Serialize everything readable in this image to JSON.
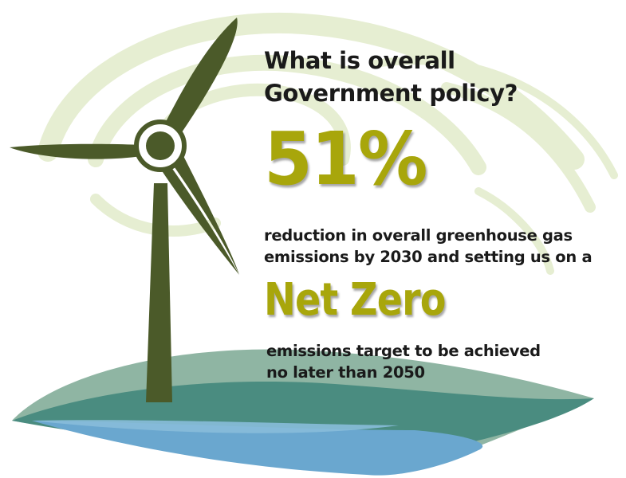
{
  "heading": {
    "line1": "What is overall",
    "line2": "Government policy?"
  },
  "stat": {
    "percent": "51%",
    "description_line1": "reduction in overall greenhouse gas",
    "description_line2": "emissions by 2030 and setting us on a"
  },
  "target": {
    "label": "Net Zero",
    "description_line1": "emissions target to be achieved",
    "description_line2": "no later than 2050"
  },
  "colors": {
    "accent_olive": "#a8a60b",
    "turbine_green": "#4b5a29",
    "swirl_pale_green": "#e6eed2",
    "hill_teal": "#4a8c80",
    "water_blue": "#6aa7cf",
    "text_dark": "#1a1a1a"
  },
  "icons": [
    "wind-turbine-icon",
    "wind-swirl-icon",
    "landscape-hills-icon"
  ]
}
